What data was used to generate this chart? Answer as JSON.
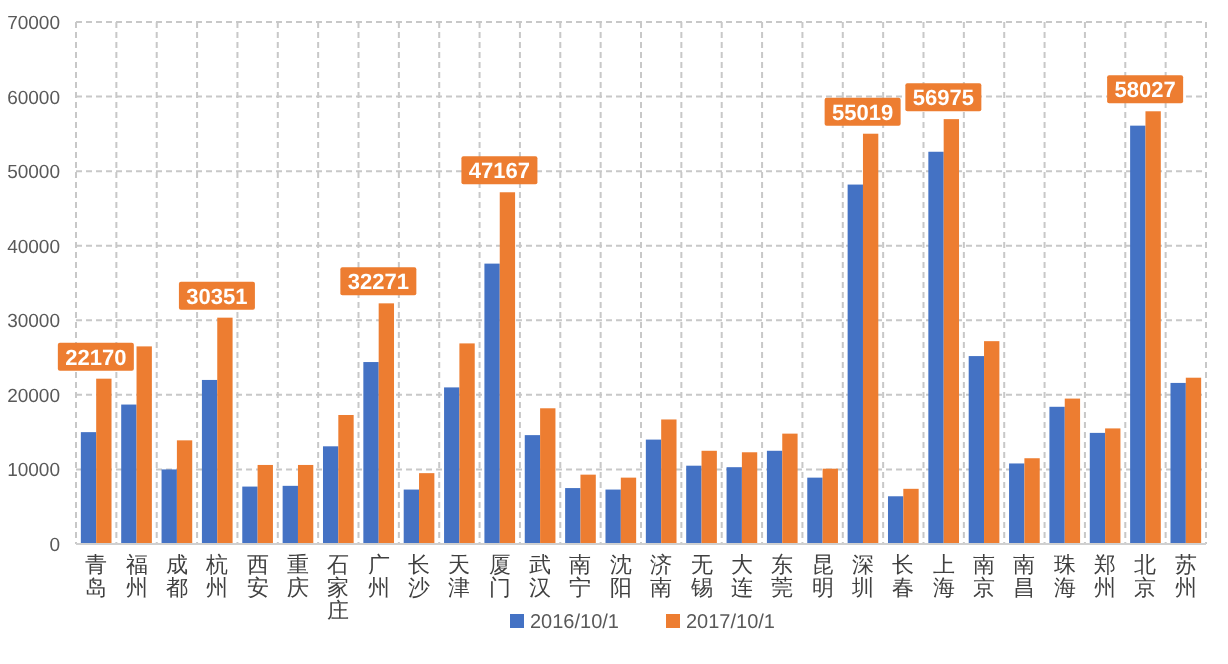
{
  "chart_data": {
    "type": "bar",
    "categories": [
      "青岛",
      "福州",
      "成都",
      "杭州",
      "西安",
      "重庆",
      "石家庄",
      "广州",
      "长沙",
      "天津",
      "厦门",
      "武汉",
      "南宁",
      "沈阳",
      "济南",
      "无锡",
      "大连",
      "东莞",
      "昆明",
      "深圳",
      "长春",
      "上海",
      "南京",
      "南昌",
      "珠海",
      "郑州",
      "北京",
      "苏州"
    ],
    "series": [
      {
        "name": "2016/10/1",
        "color": "#4472c4",
        "values": [
          15000,
          18700,
          10000,
          22000,
          7700,
          7800,
          13100,
          24400,
          7300,
          21000,
          37600,
          14600,
          7500,
          7300,
          14000,
          10500,
          10300,
          12500,
          8900,
          48200,
          6400,
          52600,
          25200,
          10800,
          18400,
          14900,
          56100,
          21600
        ]
      },
      {
        "name": "2017/10/1",
        "color": "#ed7d31",
        "values": [
          22170,
          26500,
          13900,
          30351,
          10600,
          10600,
          17300,
          32271,
          9500,
          26900,
          47167,
          18200,
          9300,
          8900,
          16700,
          12500,
          12300,
          14800,
          10100,
          55019,
          7400,
          56975,
          27200,
          11500,
          19500,
          15500,
          58027,
          22300
        ],
        "value_labels": [
          "22170",
          null,
          null,
          "30351",
          null,
          null,
          null,
          "32271",
          null,
          null,
          "47167",
          null,
          null,
          null,
          null,
          null,
          null,
          null,
          null,
          "55019",
          null,
          "56975",
          null,
          null,
          null,
          null,
          "58027",
          null
        ]
      }
    ],
    "ylim": [
      0,
      70000
    ],
    "yticks": [
      0,
      10000,
      20000,
      30000,
      40000,
      50000,
      60000,
      70000
    ],
    "grid": true,
    "legend": "bottom"
  }
}
